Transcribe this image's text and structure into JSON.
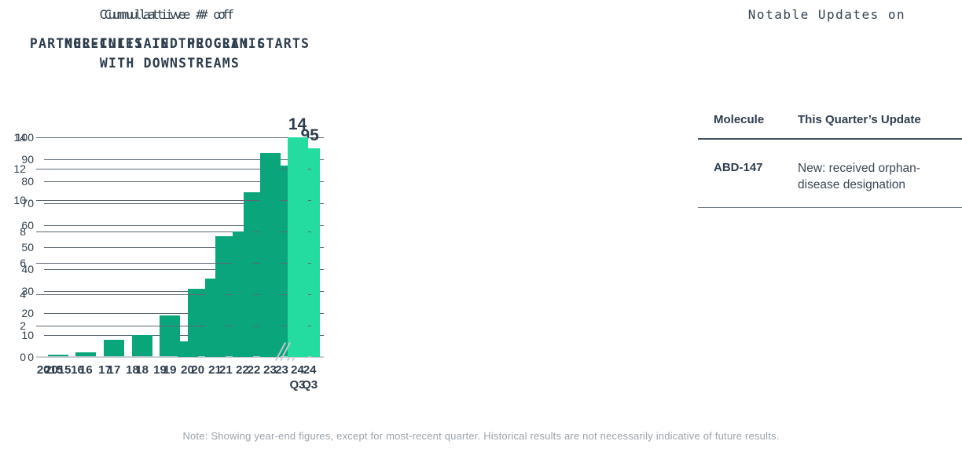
{
  "page": {
    "note": "Note: Showing year-end figures, except for most-recent quarter. Historical results are not necessarily indicative of future results."
  },
  "colors": {
    "bar_regular": "#0aa57b",
    "bar_highlight": "#25dca0",
    "text_dark": "#2e3d4d",
    "grid_line": "#5d6874",
    "axis_line": "#c9cdd2",
    "note_gray": "#9aa3ac"
  },
  "chart_data": [
    {
      "type": "bar",
      "title_prefix": "Cumulative # of",
      "title": "PARTNER-INITIATED PROGRAM STARTS WITH DOWNSTREAMS",
      "categories": [
        "2015",
        "16",
        "17",
        "18",
        "19",
        "20",
        "21",
        "22",
        "23",
        "24"
      ],
      "last_sub_label": "Q3",
      "values": [
        1,
        2,
        8,
        10,
        19,
        31,
        55,
        75,
        87,
        95
      ],
      "ylim": [
        0,
        100
      ],
      "ytick_step": 10,
      "grid": true,
      "highlight_last": true,
      "last_value_label": "95",
      "axis_break_before_last": true,
      "xlabel": "",
      "ylabel": ""
    },
    {
      "type": "bar",
      "title_prefix": "Cumulative # of",
      "title": "MOLECULES IN THE CLINIC",
      "categories": [
        "2015",
        "16",
        "17",
        "18",
        "19",
        "20",
        "21",
        "22",
        "23",
        "24"
      ],
      "last_sub_label": "Q3",
      "values": [
        0,
        0,
        0,
        0,
        0,
        1,
        5,
        8,
        13,
        14
      ],
      "ylim": [
        0,
        14
      ],
      "ytick_step": 2,
      "grid": true,
      "highlight_last": true,
      "last_value_label": "14",
      "axis_break_before_last": true,
      "xlabel": "",
      "ylabel": ""
    }
  ],
  "updates_panel": {
    "title": "Notable Updates on",
    "table": {
      "headers": [
        "Molecule",
        "This Quarter’s Update"
      ],
      "rows": [
        {
          "molecule": "ABD-147",
          "update": "New: received orphan-disease designation"
        }
      ]
    }
  }
}
